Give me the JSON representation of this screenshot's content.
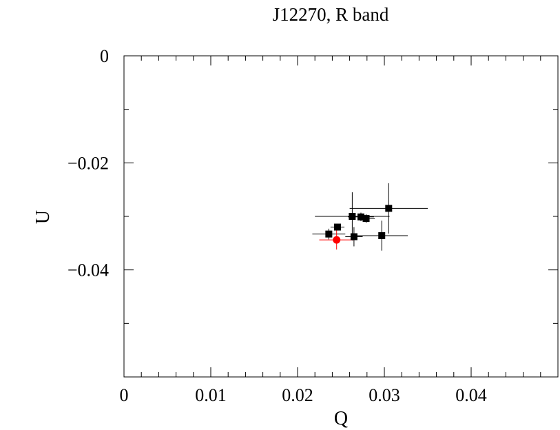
{
  "chart_data": {
    "type": "scatter",
    "title": "J12270, R band",
    "xlabel": "Q",
    "ylabel": "U",
    "xlim": [
      0,
      0.05
    ],
    "ylim": [
      -0.06,
      0
    ],
    "grid": false,
    "legend": "none",
    "x_ticks": [
      {
        "value": 0,
        "label": "0"
      },
      {
        "value": 0.01,
        "label": "0.01"
      },
      {
        "value": 0.02,
        "label": "0.02"
      },
      {
        "value": 0.03,
        "label": "0.03"
      },
      {
        "value": 0.04,
        "label": "0.04"
      }
    ],
    "y_ticks": [
      {
        "value": 0,
        "label": "0"
      },
      {
        "value": -0.02,
        "label": "−0.02"
      },
      {
        "value": -0.04,
        "label": "−0.04"
      }
    ],
    "series": [
      {
        "color": "#000000",
        "marker": "square",
        "points": [
          {
            "x": 0.0236,
            "y": -0.0333,
            "xerr": 0.0019,
            "yerr": 0.001
          },
          {
            "x": 0.0246,
            "y": -0.032,
            "xerr": 0.0008,
            "yerr": 0.0006
          },
          {
            "x": 0.0263,
            "y": -0.03,
            "xerr": 0.0043,
            "yerr": 0.0045
          },
          {
            "x": 0.0273,
            "y": -0.0301,
            "xerr": 0.0015,
            "yerr": 0.0008
          },
          {
            "x": 0.0279,
            "y": -0.0304,
            "xerr": 0.001,
            "yerr": 0.0008
          },
          {
            "x": 0.0265,
            "y": -0.0338,
            "xerr": 0.001,
            "yerr": 0.0018
          },
          {
            "x": 0.0297,
            "y": -0.0336,
            "xerr": 0.003,
            "yerr": 0.0028
          },
          {
            "x": 0.0305,
            "y": -0.0285,
            "xerr": 0.0045,
            "yerr": 0.0047
          }
        ]
      },
      {
        "color": "#ff0000",
        "marker": "circle",
        "points": [
          {
            "x": 0.0245,
            "y": -0.0344,
            "xerr": 0.002,
            "yerr": 0.0018
          }
        ]
      }
    ]
  }
}
